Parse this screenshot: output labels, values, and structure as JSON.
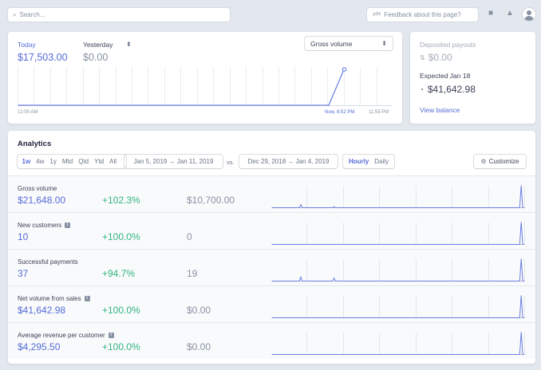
{
  "topbar": {
    "search_placeholder": "Search...",
    "feedback_label": "Feedback about this page?"
  },
  "today_card": {
    "today_label": "Today",
    "today_value": "$17,503.00",
    "yesterday_label": "Yesterday",
    "yesterday_value": "$0.00",
    "metric_select": "Gross volume",
    "time_start": "12:00 AM",
    "time_now": "Now, 8:52 PM",
    "time_end": "11:59 PM",
    "chart_data": {
      "type": "line",
      "series": [
        {
          "values": [
            0,
            0,
            0,
            0,
            0,
            0,
            0,
            0,
            0,
            0,
            0,
            0,
            0,
            0,
            0,
            0,
            0,
            0,
            0,
            0,
            0,
            17503
          ]
        }
      ],
      "ylim": [
        0,
        17503
      ]
    }
  },
  "payout_card": {
    "deposited_label": "Deposited payouts",
    "deposited_value": "$0.00",
    "expected_label": "Expected Jan 18",
    "expected_value": "$41,642.98",
    "view_balance": "View balance"
  },
  "analytics": {
    "title": "Analytics",
    "ranges": [
      "1w",
      "4w",
      "1y",
      "Mtd",
      "Qtd",
      "Ytd",
      "All"
    ],
    "active_range": "1w",
    "date_range": "Jan 5, 2019 → Jan 11, 2019",
    "vs_label": "vs.",
    "compare_range": "Dec 29, 2018 → Jan 4, 2019",
    "granularity": [
      "Hourly",
      "Daily"
    ],
    "customize_label": "Customize",
    "metrics": [
      {
        "name": "Gross volume",
        "value": "$21,648.00",
        "change": "+102.3%",
        "previous": "$10,700.00",
        "info": false,
        "spark": [
          0,
          0,
          0,
          0,
          0,
          0,
          0,
          0,
          0,
          0,
          0,
          0,
          0,
          0,
          0,
          0,
          0,
          0,
          0,
          3,
          0,
          0,
          0,
          0,
          0,
          0,
          0,
          0,
          0,
          0,
          0,
          0,
          0,
          0,
          0,
          0,
          0,
          0,
          0,
          0,
          0,
          1,
          0,
          0,
          0,
          0,
          0,
          0,
          0,
          0,
          0,
          0,
          0,
          0,
          0,
          0,
          0,
          0,
          0,
          0,
          0,
          0,
          0,
          0,
          0,
          0,
          0,
          0,
          0,
          0,
          0,
          0,
          0,
          0,
          0,
          0,
          0,
          0,
          0,
          0,
          0,
          0,
          0,
          0,
          0,
          0,
          0,
          0,
          0,
          0,
          0,
          0,
          0,
          0,
          0,
          0,
          0,
          0,
          0,
          0,
          0,
          0,
          0,
          0,
          0,
          0,
          0,
          0,
          0,
          0,
          0,
          0,
          0,
          0,
          0,
          0,
          0,
          0,
          0,
          0,
          0,
          0,
          0,
          0,
          0,
          0,
          0,
          0,
          0,
          0,
          0,
          0,
          0,
          0,
          0,
          0,
          0,
          0,
          0,
          0,
          0,
          0,
          0,
          0,
          0,
          0,
          0,
          0,
          0,
          0,
          0,
          0,
          0,
          0,
          0,
          0,
          0,
          0,
          0,
          0,
          0,
          0,
          0,
          0,
          0,
          22,
          0,
          0
        ]
      },
      {
        "name": "New customers",
        "value": "10",
        "change": "+100.0%",
        "previous": "0",
        "info": true,
        "spark": [
          0,
          0,
          0,
          0,
          0,
          0,
          0,
          0,
          0,
          0,
          0,
          0,
          0,
          0,
          0,
          0,
          0,
          0,
          0,
          0,
          0,
          0,
          0,
          0,
          0,
          0,
          0,
          0,
          0,
          0,
          0,
          0,
          0,
          0,
          0,
          0,
          0,
          0,
          0,
          0,
          0,
          0,
          0,
          0,
          0,
          0,
          0,
          0,
          0,
          0,
          0,
          0,
          0,
          0,
          0,
          0,
          0,
          0,
          0,
          0,
          0,
          0,
          0,
          0,
          0,
          0,
          0,
          0,
          0,
          0,
          0,
          0,
          0,
          0,
          0,
          0,
          0,
          0,
          0,
          0,
          0,
          0,
          0,
          0,
          0,
          0,
          0,
          0,
          0,
          0,
          0,
          0,
          0,
          0,
          0,
          0,
          0,
          0,
          0,
          0,
          0,
          0,
          0,
          0,
          0,
          0,
          0,
          0,
          0,
          0,
          0,
          0,
          0,
          0,
          0,
          0,
          0,
          0,
          0,
          0,
          0,
          0,
          0,
          0,
          0,
          0,
          0,
          0,
          0,
          0,
          0,
          0,
          0,
          0,
          0,
          0,
          0,
          0,
          0,
          0,
          0,
          0,
          0,
          0,
          0,
          0,
          0,
          0,
          0,
          0,
          0,
          0,
          0,
          0,
          0,
          0,
          0,
          0,
          0,
          0,
          0,
          0,
          0,
          0,
          0,
          22,
          0,
          0
        ]
      },
      {
        "name": "Successful payments",
        "value": "37",
        "change": "+94.7%",
        "previous": "19",
        "info": false,
        "spark": [
          0,
          0,
          0,
          0,
          0,
          0,
          0,
          0,
          0,
          0,
          0,
          0,
          0,
          0,
          0,
          0,
          0,
          0,
          0,
          4,
          0,
          0,
          0,
          0,
          0,
          0,
          0,
          0,
          0,
          0,
          0,
          0,
          0,
          0,
          0,
          0,
          0,
          0,
          0,
          0,
          0,
          3,
          0,
          0,
          0,
          0,
          0,
          0,
          0,
          0,
          0,
          0,
          0,
          0,
          0,
          0,
          0,
          0,
          0,
          0,
          0,
          0,
          0,
          0,
          0,
          0,
          0,
          0,
          0,
          0,
          0,
          0,
          0,
          0,
          0,
          0,
          0,
          0,
          0,
          0,
          0,
          0,
          0,
          0,
          0,
          0,
          0,
          0,
          0,
          0,
          0,
          0,
          0,
          0,
          0,
          0,
          0,
          0,
          0,
          0,
          0,
          0,
          0,
          0,
          0,
          0,
          0,
          0,
          0,
          0,
          0,
          0,
          0,
          0,
          0,
          0,
          0,
          0,
          0,
          0,
          0,
          0,
          0,
          0,
          0,
          0,
          0,
          0,
          0,
          0,
          0,
          0,
          0,
          0,
          0,
          0,
          0,
          0,
          0,
          0,
          0,
          0,
          0,
          0,
          0,
          0,
          0,
          0,
          0,
          0,
          0,
          0,
          0,
          0,
          0,
          0,
          0,
          0,
          0,
          0,
          0,
          0,
          0,
          0,
          0,
          22,
          0,
          0
        ]
      },
      {
        "name": "Net volume from sales",
        "value": "$41,642.98",
        "change": "+100.0%",
        "previous": "$0.00",
        "info": true,
        "spark": [
          0,
          0,
          0,
          0,
          0,
          0,
          0,
          0,
          0,
          0,
          0,
          0,
          0,
          0,
          0,
          0,
          0,
          0,
          0,
          0,
          0,
          0,
          0,
          0,
          0,
          0,
          0,
          0,
          0,
          0,
          0,
          0,
          0,
          0,
          0,
          0,
          0,
          0,
          0,
          0,
          0,
          0,
          0,
          0,
          0,
          0,
          0,
          0,
          0,
          0,
          0,
          0,
          0,
          0,
          0,
          0,
          0,
          0,
          0,
          0,
          0,
          0,
          0,
          0,
          0,
          0,
          0,
          0,
          0,
          0,
          0,
          0,
          0,
          0,
          0,
          0,
          0,
          0,
          0,
          0,
          0,
          0,
          0,
          0,
          0,
          0,
          0,
          0,
          0,
          0,
          0,
          0,
          0,
          0,
          0,
          0,
          0,
          0,
          0,
          0,
          0,
          0,
          0,
          0,
          0,
          0,
          0,
          0,
          0,
          0,
          0,
          0,
          0,
          0,
          0,
          0,
          0,
          0,
          0,
          0,
          0,
          0,
          0,
          0,
          0,
          0,
          0,
          0,
          0,
          0,
          0,
          0,
          0,
          0,
          0,
          0,
          0,
          0,
          0,
          0,
          0,
          0,
          0,
          0,
          0,
          0,
          0,
          0,
          0,
          0,
          0,
          0,
          0,
          0,
          0,
          0,
          0,
          0,
          0,
          0,
          0,
          0,
          0,
          0,
          0,
          22,
          0,
          0
        ]
      },
      {
        "name": "Average revenue per customer",
        "value": "$4,295.50",
        "change": "+100.0%",
        "previous": "$0.00",
        "info": true,
        "spark": [
          0,
          0,
          0,
          0,
          0,
          0,
          0,
          0,
          0,
          0,
          0,
          0,
          0,
          0,
          0,
          0,
          0,
          0,
          0,
          0,
          0,
          0,
          0,
          0,
          0,
          0,
          0,
          0,
          0,
          0,
          0,
          0,
          0,
          0,
          0,
          0,
          0,
          0,
          0,
          0,
          0,
          0,
          0,
          0,
          0,
          0,
          0,
          0,
          0,
          0,
          0,
          0,
          0,
          0,
          0,
          0,
          0,
          0,
          0,
          0,
          0,
          0,
          0,
          0,
          0,
          0,
          0,
          0,
          0,
          0,
          0,
          0,
          0,
          0,
          0,
          0,
          0,
          0,
          0,
          0,
          0,
          0,
          0,
          0,
          0,
          0,
          0,
          0,
          0,
          0,
          0,
          0,
          0,
          0,
          0,
          0,
          0,
          0,
          0,
          0,
          0,
          0,
          0,
          0,
          0,
          0,
          0,
          0,
          0,
          0,
          0,
          0,
          0,
          0,
          0,
          0,
          0,
          0,
          0,
          0,
          0,
          0,
          0,
          0,
          0,
          0,
          0,
          0,
          0,
          0,
          0,
          0,
          0,
          0,
          0,
          0,
          0,
          0,
          0,
          0,
          0,
          0,
          0,
          0,
          0,
          0,
          0,
          0,
          0,
          0,
          0,
          0,
          0,
          0,
          0,
          0,
          0,
          0,
          0,
          0,
          0,
          0,
          0,
          0,
          0,
          22,
          0,
          0
        ]
      }
    ]
  }
}
